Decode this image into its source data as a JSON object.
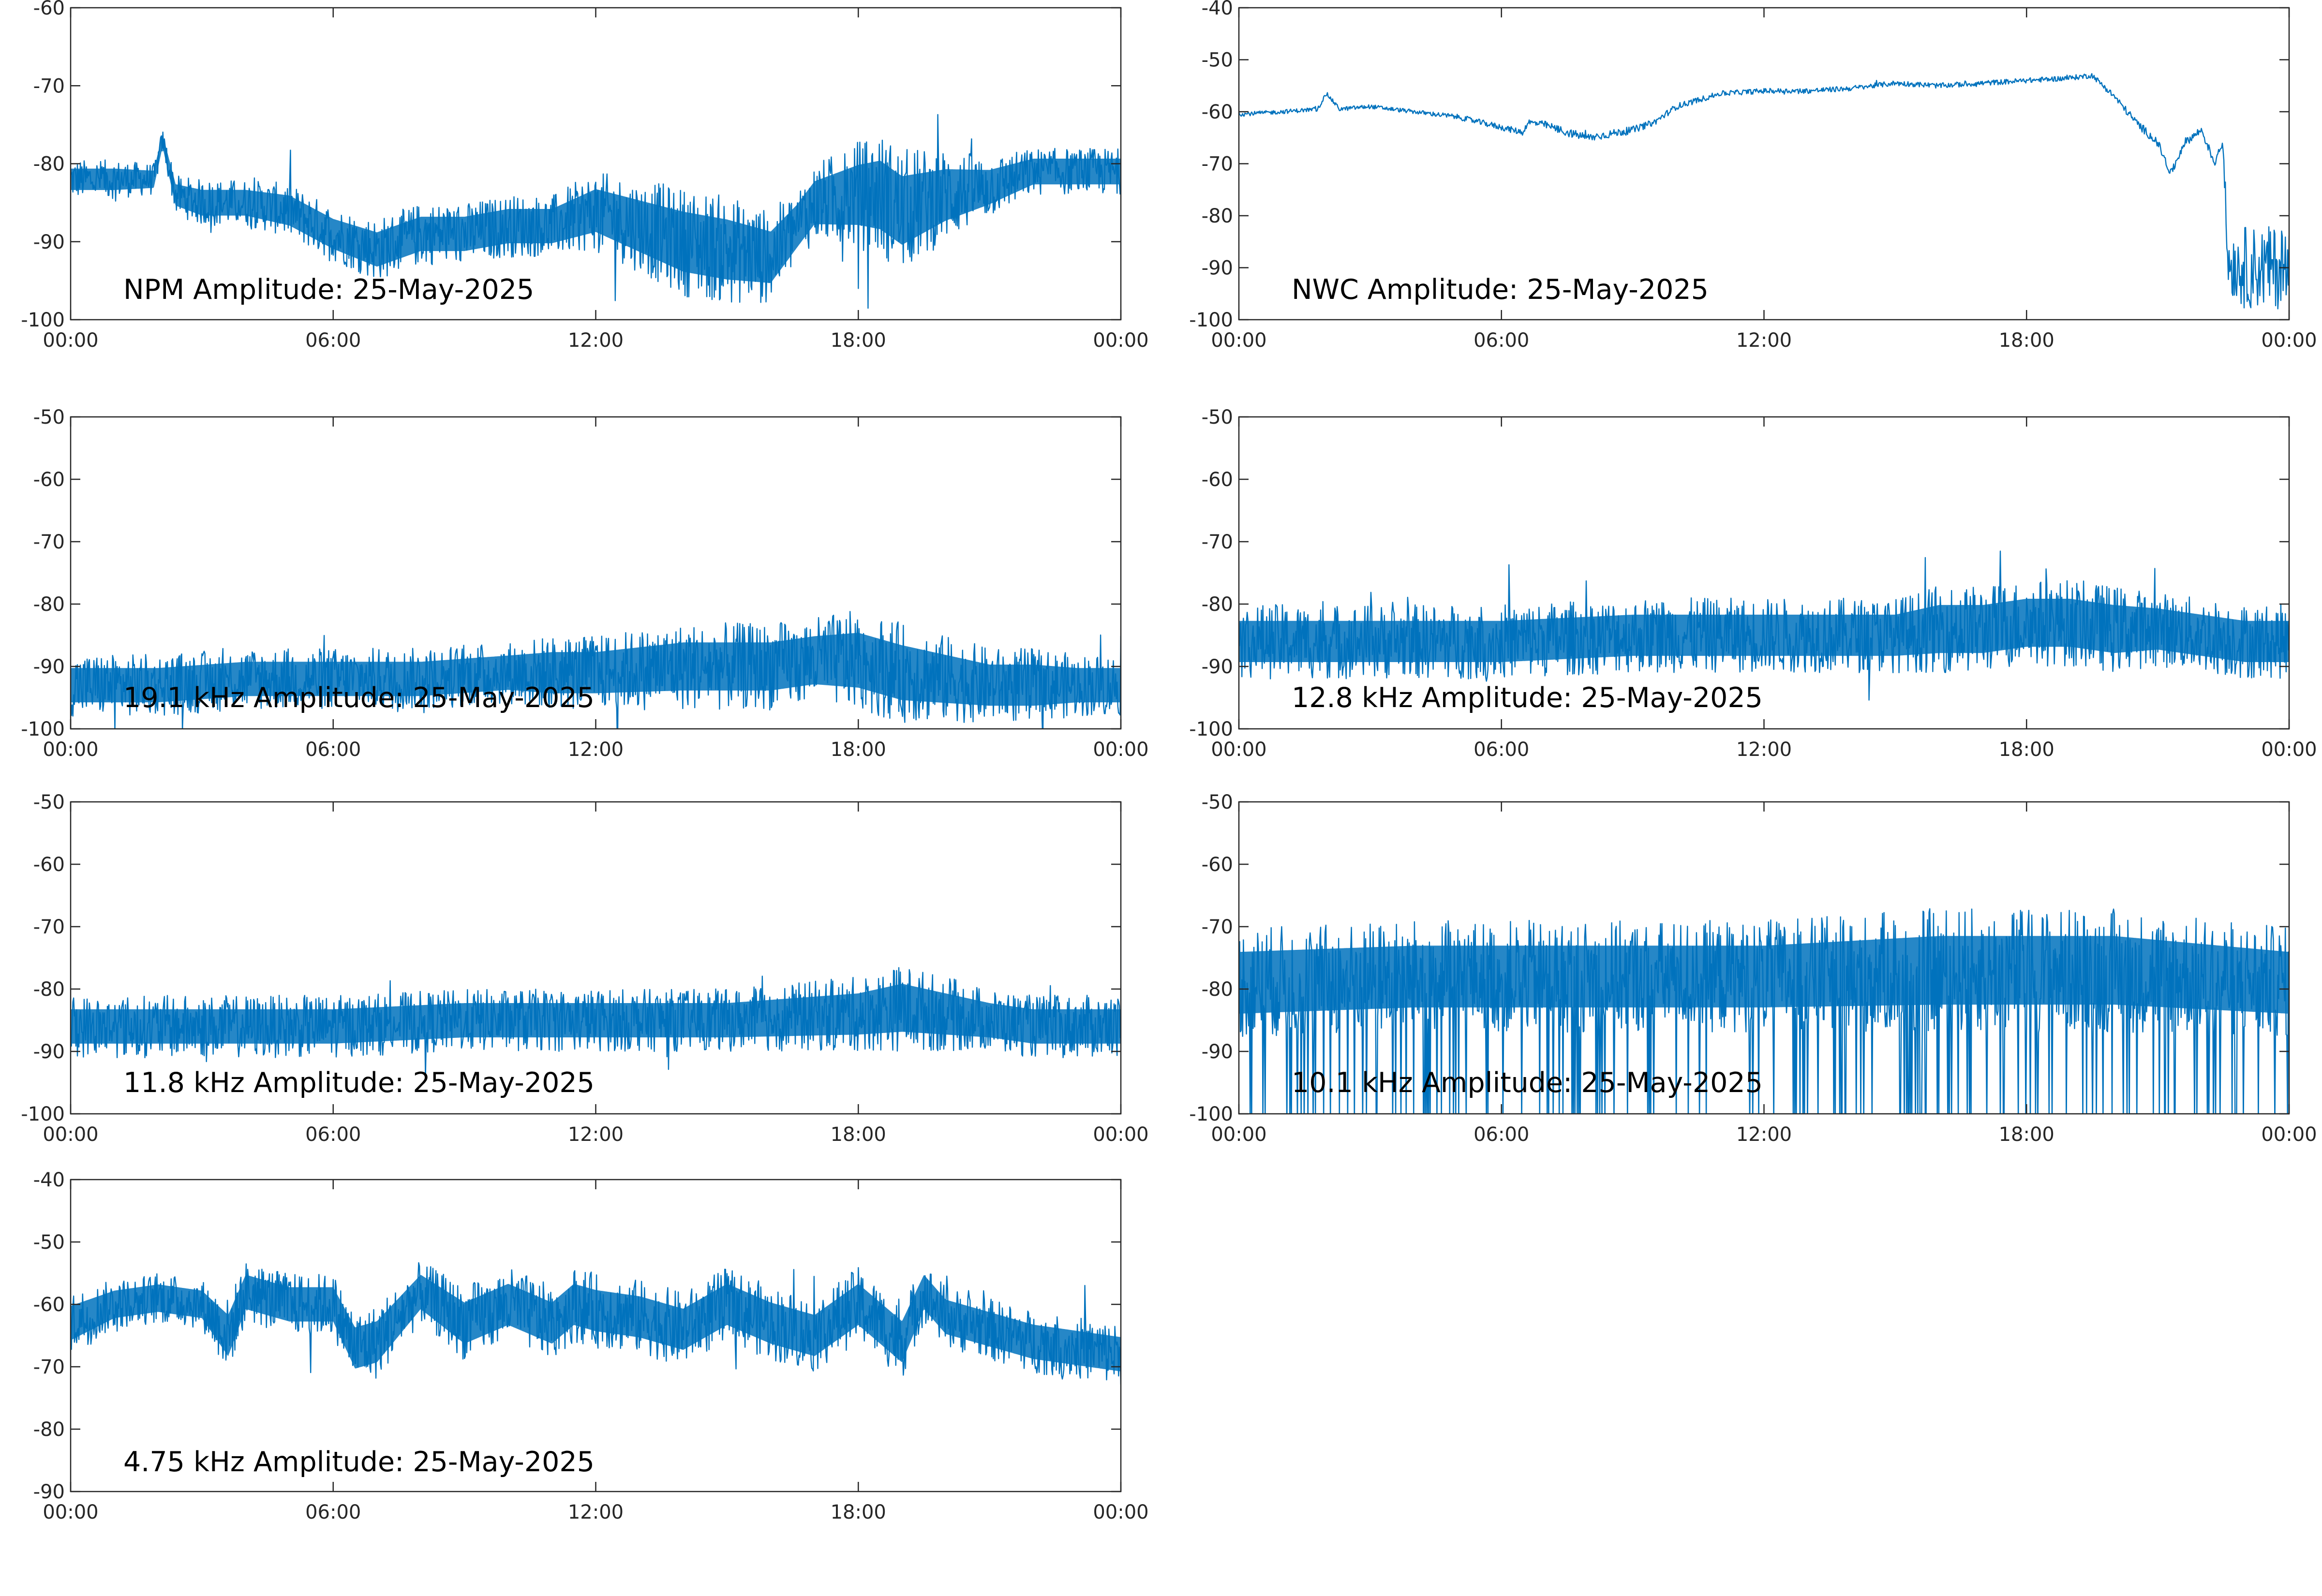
{
  "colors": {
    "line": "#0072bd",
    "axes": "#262626",
    "background": "#ffffff"
  },
  "chart_data": [
    {
      "type": "line",
      "title": "NPM Amplitude: 25-May-2025",
      "ylim": [
        -100,
        -60
      ],
      "yticks": [
        "-60",
        "-70",
        "-80",
        "-90",
        "-100"
      ],
      "xticks": [
        "00:00",
        "06:00",
        "12:00",
        "18:00",
        "00:00"
      ],
      "x_hours": [
        0,
        1,
        1.9,
        2.1,
        2.4,
        3,
        4,
        5,
        6,
        7,
        8,
        9,
        10,
        11,
        12,
        13,
        14,
        15,
        16,
        16.6,
        17,
        18,
        18.5,
        19,
        19.5,
        20,
        21,
        22,
        23,
        24
      ],
      "series": [
        {
          "mean": [
            -82,
            -82,
            -82,
            -77,
            -84,
            -85,
            -85,
            -86,
            -89,
            -91,
            -89,
            -89,
            -88,
            -88,
            -86,
            -88,
            -90,
            -91,
            -92,
            -88,
            -85,
            -84,
            -84,
            -86,
            -85,
            -84,
            -83,
            -81,
            -81,
            -81
          ],
          "spread": [
            2.5,
            2.5,
            2,
            1.5,
            2.5,
            3,
            3,
            3.5,
            3.5,
            4,
            4,
            4,
            4,
            4,
            5,
            6,
            7,
            7,
            6,
            5,
            5,
            7,
            8,
            8,
            7,
            6,
            4,
            3,
            3,
            3
          ]
        }
      ]
    },
    {
      "type": "line",
      "title": "NWC Amplitude: 25-May-2025",
      "ylim": [
        -100,
        -40
      ],
      "yticks": [
        "-40",
        "-50",
        "-60",
        "-70",
        "-80",
        "-90",
        "-100"
      ],
      "xticks": [
        "00:00",
        "06:00",
        "12:00",
        "18:00",
        "00:00"
      ],
      "x_hours": [
        0,
        1,
        1.8,
        2.0,
        2.3,
        3,
        4,
        5,
        6,
        6.5,
        6.6,
        7,
        7.5,
        8,
        9,
        9.5,
        10,
        11,
        12,
        13,
        14,
        15,
        16,
        17,
        18,
        19,
        19.5,
        20,
        20.5,
        21,
        21.3,
        21.6,
        22,
        22.3,
        22.4,
        22.5,
        22.6,
        23,
        24
      ],
      "series": [
        {
          "mean": [
            -60.5,
            -60,
            -59.5,
            -56.5,
            -59.5,
            -59,
            -60,
            -61,
            -63,
            -64,
            -62,
            -62.5,
            -64,
            -65,
            -63.5,
            -62,
            -59,
            -56.5,
            -56,
            -56,
            -55.5,
            -54.5,
            -55,
            -54.5,
            -54,
            -53.5,
            -53,
            -57,
            -62,
            -66,
            -72,
            -66,
            -63.5,
            -70,
            -67,
            -67,
            -89,
            -90,
            -90
          ],
          "spread": [
            0.4,
            0.4,
            0.4,
            0.4,
            0.4,
            0.4,
            0.4,
            0.5,
            0.6,
            0.6,
            0.6,
            0.7,
            0.8,
            0.8,
            0.7,
            0.6,
            0.6,
            0.5,
            0.5,
            0.5,
            0.5,
            0.5,
            0.5,
            0.5,
            0.5,
            0.5,
            0.5,
            0.6,
            0.8,
            0.8,
            0.8,
            0.8,
            0.8,
            0.8,
            0.8,
            0.8,
            6,
            8,
            8
          ]
        }
      ]
    },
    {
      "type": "line",
      "title": "19.1 kHz Amplitude: 25-May-2025",
      "ylim": [
        -100,
        -50
      ],
      "yticks": [
        "-50",
        "-60",
        "-70",
        "-80",
        "-90",
        "-100"
      ],
      "xticks": [
        "00:00",
        "06:00",
        "12:00",
        "18:00",
        "00:00"
      ],
      "x_hours": [
        0,
        2,
        4,
        6,
        8,
        10,
        11,
        12,
        14,
        16,
        17,
        18,
        19,
        20,
        21,
        22,
        23,
        24
      ],
      "series": [
        {
          "mean": [
            -93,
            -93,
            -92,
            -92,
            -92,
            -91,
            -91,
            -91,
            -90,
            -90,
            -89,
            -89,
            -91,
            -92,
            -93,
            -93,
            -93,
            -93
          ],
          "spread": [
            5,
            5,
            5,
            5,
            5,
            5,
            6,
            6,
            7,
            7,
            7,
            8,
            8,
            7,
            6,
            6,
            5,
            5
          ]
        }
      ]
    },
    {
      "type": "line",
      "title": "12.8 kHz Amplitude: 25-May-2025",
      "ylim": [
        -100,
        -50
      ],
      "yticks": [
        "-50",
        "-60",
        "-70",
        "-80",
        "-90",
        "-100"
      ],
      "xticks": [
        "00:00",
        "06:00",
        "12:00",
        "18:00",
        "00:00"
      ],
      "x_hours": [
        0,
        3,
        6,
        9,
        12,
        15,
        16,
        17,
        18,
        19,
        20,
        21,
        22,
        23,
        24
      ],
      "series": [
        {
          "mean": [
            -86,
            -86,
            -86,
            -85,
            -85,
            -85,
            -84,
            -84,
            -83,
            -83,
            -84,
            -84,
            -85,
            -86,
            -86
          ],
          "spread": [
            6,
            6,
            6,
            6,
            6,
            6,
            7,
            7,
            7,
            7,
            7,
            6,
            6,
            6,
            6
          ]
        }
      ]
    },
    {
      "type": "line",
      "title": "11.8 kHz Amplitude: 25-May-2025",
      "ylim": [
        -100,
        -50
      ],
      "yticks": [
        "-50",
        "-60",
        "-70",
        "-80",
        "-90",
        "-100"
      ],
      "xticks": [
        "00:00",
        "06:00",
        "12:00",
        "18:00",
        "00:00"
      ],
      "x_hours": [
        0,
        3,
        6,
        9,
        12,
        15,
        18,
        19,
        20,
        21,
        22,
        23,
        24
      ],
      "series": [
        {
          "mean": [
            -86,
            -86,
            -86,
            -85,
            -85,
            -85,
            -84,
            -83,
            -84,
            -85,
            -86,
            -86,
            -86
          ],
          "spread": [
            5,
            5,
            5,
            5,
            5,
            5,
            6,
            7,
            6,
            5,
            5,
            5,
            5
          ]
        }
      ]
    },
    {
      "type": "line",
      "title": "10.1 kHz Amplitude: 25-May-2025",
      "ylim": [
        -100,
        -50
      ],
      "yticks": [
        "-50",
        "-60",
        "-70",
        "-80",
        "-90",
        "-100"
      ],
      "xticks": [
        "00:00",
        "06:00",
        "12:00",
        "18:00",
        "00:00"
      ],
      "x_hours": [
        0,
        4,
        8,
        12,
        16,
        20,
        24
      ],
      "series": [
        {
          "mean": [
            -79,
            -78,
            -78,
            -78,
            -77,
            -77,
            -79
          ],
          "spread": [
            9,
            9,
            9,
            9,
            10,
            10,
            9
          ]
        }
      ]
    },
    {
      "type": "line",
      "title": "4.75 kHz Amplitude: 25-May-2025",
      "ylim": [
        -90,
        -40
      ],
      "yticks": [
        "-40",
        "-50",
        "-60",
        "-70",
        "-80",
        "-90"
      ],
      "xticks": [
        "00:00",
        "06:00",
        "12:00",
        "18:00",
        "00:00"
      ],
      "x_hours": [
        0,
        1,
        2,
        3,
        3.6,
        4,
        5,
        6,
        6.5,
        7,
        8,
        9,
        10,
        11,
        11.5,
        12,
        13,
        14,
        15,
        16,
        17,
        18,
        19,
        19.5,
        20,
        21,
        22,
        23,
        24
      ],
      "series": [
        {
          "mean": [
            -63,
            -60,
            -59,
            -60,
            -65,
            -58,
            -60,
            -60,
            -67,
            -66,
            -58,
            -63,
            -60,
            -63,
            -60,
            -61,
            -62,
            -64,
            -60,
            -63,
            -65,
            -60,
            -66,
            -58,
            -62,
            -64,
            -66,
            -67,
            -68
          ],
          "spread": [
            5,
            4,
            4,
            4,
            6,
            5,
            5,
            5,
            6,
            6,
            5,
            6,
            6,
            6,
            6,
            6,
            6,
            6,
            6,
            6,
            6,
            6,
            6,
            5,
            5,
            5,
            5,
            5,
            5
          ]
        }
      ]
    }
  ]
}
